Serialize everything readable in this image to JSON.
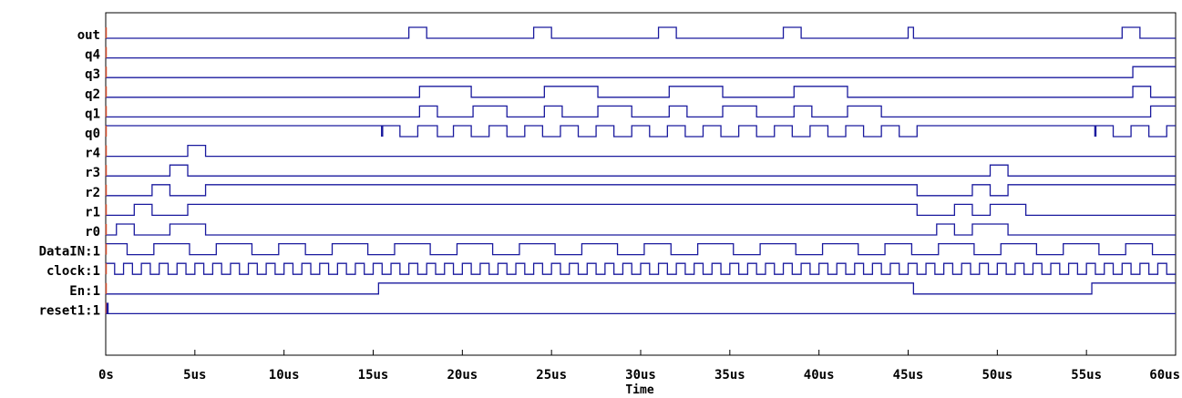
{
  "chart_data": {
    "type": "line",
    "subtype": "digital-timing-diagram",
    "xlabel": "Time",
    "xlim": [
      0,
      60
    ],
    "x_unit": "us",
    "ticks": [
      0,
      5,
      10,
      15,
      20,
      25,
      30,
      35,
      40,
      45,
      50,
      55,
      60
    ],
    "tick_labels": [
      "0s",
      "5us",
      "10us",
      "15us",
      "20us",
      "25us",
      "30us",
      "35us",
      "40us",
      "45us",
      "50us",
      "55us",
      "60us"
    ],
    "series": [
      {
        "name": "out",
        "initial": 0,
        "toggles": [
          17,
          18,
          24,
          25,
          31,
          32,
          38,
          39,
          45,
          45.3,
          57,
          58
        ]
      },
      {
        "name": "q4",
        "initial": 0,
        "toggles": []
      },
      {
        "name": "q3",
        "initial": 0,
        "toggles": [
          57.6
        ]
      },
      {
        "name": "q2",
        "initial": 0,
        "toggles": [
          17.6,
          20.5,
          24.6,
          27.6,
          31.6,
          34.6,
          38.6,
          41.6,
          57.6,
          58.6
        ]
      },
      {
        "name": "q1",
        "initial": 0,
        "toggles": [
          17.6,
          18.6,
          20.6,
          22.5,
          24.6,
          25.6,
          27.6,
          29.5,
          31.6,
          32.6,
          34.6,
          36.5,
          38.6,
          39.6,
          41.6,
          43.5,
          58.6
        ]
      },
      {
        "name": "q0",
        "initial": 1,
        "toggles": [
          16.5,
          17.5,
          18.6,
          19.5,
          20.5,
          21.5,
          22.5,
          23.5,
          24.5,
          25.5,
          26.5,
          27.5,
          28.5,
          29.5,
          30.5,
          31.5,
          32.5,
          33.5,
          34.5,
          35.5,
          36.5,
          37.5,
          38.5,
          39.5,
          40.5,
          41.5,
          42.5,
          43.5,
          44.5,
          45.5,
          56.5,
          57.5,
          58.5,
          59.5
        ]
      },
      {
        "name": "r4",
        "initial": 0,
        "toggles": [
          4.6,
          5.6
        ]
      },
      {
        "name": "r3",
        "initial": 0,
        "toggles": [
          3.6,
          4.6,
          49.6,
          50.6
        ]
      },
      {
        "name": "r2",
        "initial": 0,
        "toggles": [
          2.6,
          3.6,
          5.6,
          45.5,
          48.6,
          49.6,
          50.6
        ]
      },
      {
        "name": "r1",
        "initial": 0,
        "toggles": [
          1.6,
          2.6,
          4.6,
          45.5,
          47.6,
          48.6,
          49.6,
          51.6
        ]
      },
      {
        "name": "r0",
        "initial": 0,
        "toggles": [
          0.6,
          1.6,
          3.6,
          5.6,
          46.6,
          47.6,
          48.6,
          50.6
        ]
      },
      {
        "name": "DataIN:1",
        "initial": 1,
        "toggles": [
          1.2,
          2.7,
          4.7,
          6.2,
          8.2,
          9.7,
          11.2,
          12.7,
          14.7,
          16.2,
          18.2,
          19.7,
          21.7,
          23.2,
          25.2,
          26.7,
          28.7,
          30.2,
          31.7,
          33.2,
          35.2,
          36.7,
          38.7,
          40.2,
          42.2,
          43.7,
          45.2,
          46.7,
          48.7,
          50.2,
          52.2,
          53.7,
          55.7,
          57.2,
          58.7,
          60
        ]
      },
      {
        "name": "clock:1",
        "type": "clock",
        "period": 1.0,
        "start": 0.5,
        "initial": 1
      },
      {
        "name": "En:1",
        "initial": 0,
        "toggles": [
          15.3,
          45.3,
          55.3
        ]
      },
      {
        "name": "reset1:1",
        "initial": 0,
        "toggles": [],
        "glitch_at": 0.1
      }
    ]
  }
}
